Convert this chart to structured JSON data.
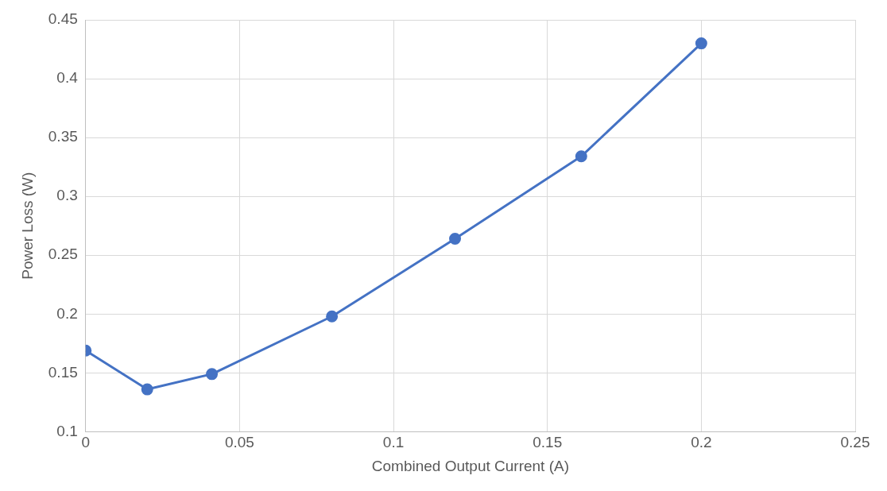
{
  "chart_data": {
    "type": "line",
    "xlabel": "Combined Output Current (A)",
    "ylabel": "Power Loss (W)",
    "x": [
      0,
      0.02,
      0.041,
      0.08,
      0.12,
      0.161,
      0.2
    ],
    "series": [
      {
        "color": "#4472c4",
        "values": [
          0.169,
          0.136,
          0.149,
          0.198,
          0.264,
          0.334,
          0.43
        ]
      }
    ],
    "xlim": [
      0,
      0.25
    ],
    "xticks": [
      0,
      0.05,
      0.1,
      0.15,
      0.2,
      0.25
    ],
    "ylim": [
      0.1,
      0.45
    ],
    "yticks": [
      0.1,
      0.15,
      0.2,
      0.25,
      0.3,
      0.35,
      0.4,
      0.45
    ],
    "grid": true,
    "legend": false,
    "marker": "circle",
    "line_style": "solid"
  }
}
